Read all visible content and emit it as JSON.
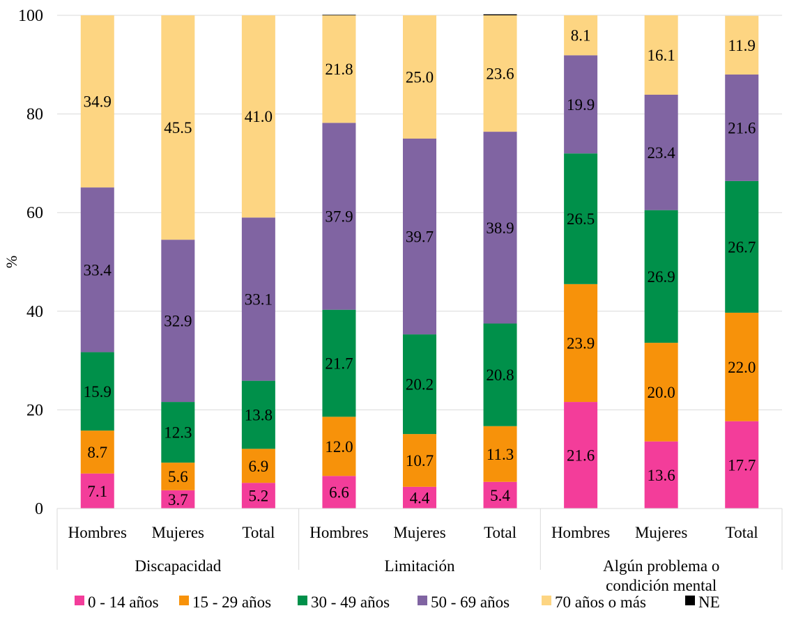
{
  "chart_data": {
    "type": "bar",
    "stacked": true,
    "ylabel": "%",
    "ylim": [
      0,
      100
    ],
    "yticks": [
      0,
      20,
      40,
      60,
      80,
      100
    ],
    "grid": true,
    "legend_position": "bottom",
    "groups": [
      {
        "label": "Discapacidad",
        "categories": [
          "Hombres",
          "Mujeres",
          "Total"
        ]
      },
      {
        "label": "Limitación",
        "categories": [
          "Hombres",
          "Mujeres",
          "Total"
        ]
      },
      {
        "label": "Algún problema o condición mental",
        "categories": [
          "Hombres",
          "Mujeres",
          "Total"
        ]
      }
    ],
    "categories": [
      "Hombres",
      "Mujeres",
      "Total",
      "Hombres",
      "Mujeres",
      "Total",
      "Hombres",
      "Mujeres",
      "Total"
    ],
    "series": [
      {
        "name": "0 - 14 años",
        "color": "#f33d9a",
        "values": [
          7.1,
          3.7,
          5.2,
          6.6,
          4.4,
          5.4,
          21.6,
          13.6,
          17.7
        ]
      },
      {
        "name": "15 - 29 años",
        "color": "#f7920a",
        "values": [
          8.7,
          5.6,
          6.9,
          12.0,
          10.7,
          11.3,
          23.9,
          20.0,
          22.0
        ]
      },
      {
        "name": "30 - 49 años",
        "color": "#00904a",
        "values": [
          15.9,
          12.3,
          13.8,
          21.7,
          20.2,
          20.8,
          26.5,
          26.9,
          26.7
        ]
      },
      {
        "name": "50 - 69 años",
        "color": "#8064a2",
        "values": [
          33.4,
          32.9,
          33.1,
          37.9,
          39.7,
          38.9,
          19.9,
          23.4,
          21.6
        ]
      },
      {
        "name": "70 años o más",
        "color": "#fdd582",
        "values": [
          34.9,
          45.5,
          41.0,
          21.8,
          25.0,
          23.6,
          8.1,
          16.1,
          11.9
        ]
      },
      {
        "name": "NE",
        "color": "#000000",
        "values": [
          0,
          0,
          0,
          0.1,
          0,
          0.2,
          0,
          0,
          0
        ]
      }
    ]
  }
}
